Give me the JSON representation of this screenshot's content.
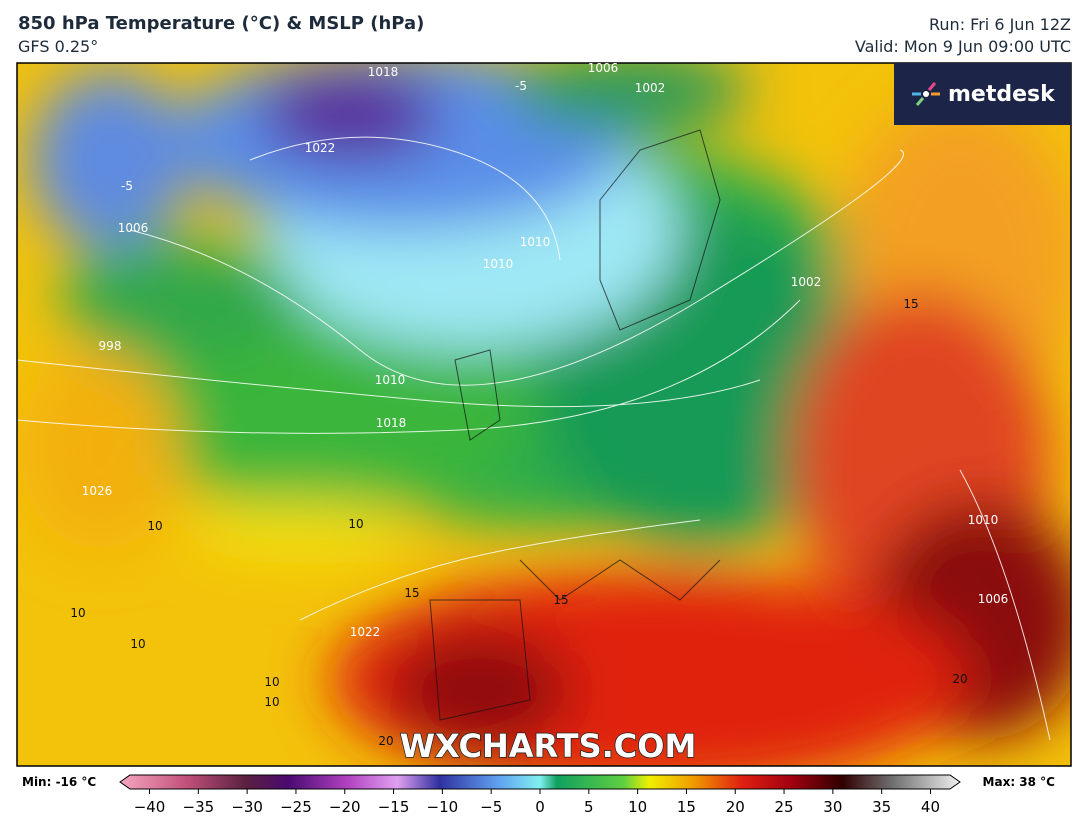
{
  "header": {
    "title": "850 hPa Temperature (°C) & MSLP (hPa)",
    "subtitle": "GFS 0.25°",
    "run": "Run: Fri 6 Jun 12Z",
    "valid": "Valid: Mon 9 Jun 09:00 UTC"
  },
  "logo": "metdesk",
  "watermark": "WXCHARTS.COM",
  "map": {
    "labels": [
      "1018",
      "1022",
      "1002",
      "1006",
      "1010",
      "1010",
      "1010",
      "1018",
      "1026",
      "1002",
      "998",
      "1006",
      "10",
      "10",
      "10",
      "10",
      "10",
      "10",
      "15",
      "15",
      "15",
      "1022",
      "1010",
      "1006",
      "-5",
      "-5",
      "20",
      "20"
    ]
  },
  "colorbar": {
    "min_label": "Min: -16 °C",
    "max_label": "Max: 38 °C",
    "ticks": [
      {
        "value": -40,
        "label": "−40"
      },
      {
        "value": -35,
        "label": "−35"
      },
      {
        "value": -30,
        "label": "−30"
      },
      {
        "value": -25,
        "label": "−25"
      },
      {
        "value": -20,
        "label": "−20"
      },
      {
        "value": -15,
        "label": "−15"
      },
      {
        "value": -10,
        "label": "−10"
      },
      {
        "value": -5,
        "label": "−5"
      },
      0,
      5,
      10,
      15,
      20,
      25,
      30,
      35,
      40
    ],
    "lim": [
      -42,
      42
    ]
  }
}
